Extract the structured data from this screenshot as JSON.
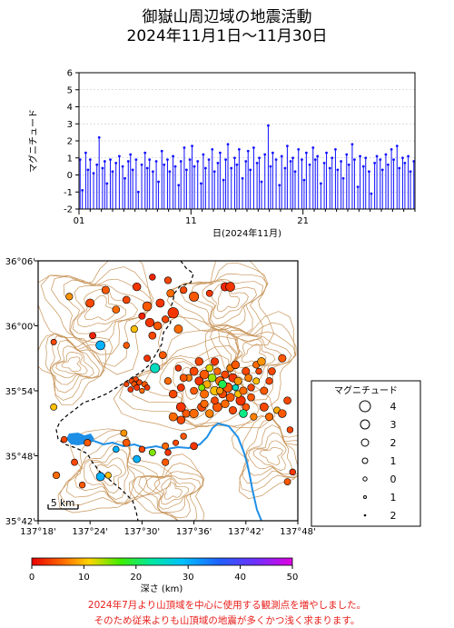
{
  "title": {
    "line1": "御嶽山周辺域の地震活動",
    "line2": "2024年11月1日〜11月30日"
  },
  "colors": {
    "stem": "#1010ff",
    "river": "#1e8fe6",
    "contour": "#c8955a",
    "note": "#e8201c"
  },
  "chart_data": [
    {
      "type": "stem",
      "ylabel": "マグニチュード",
      "xlabel": "日(2024年11月)",
      "xlim": [
        1,
        31
      ],
      "ylim": [
        -2,
        6
      ],
      "xticks": [
        "01",
        "11",
        "21"
      ],
      "xtick_values": [
        1,
        11,
        21
      ],
      "yticks": [
        "6",
        "5",
        "4",
        "3",
        "2",
        "1",
        "0",
        "-1",
        "-2"
      ],
      "events": [
        [
          1.1,
          0.9
        ],
        [
          1.3,
          -0.9
        ],
        [
          1.6,
          1.3
        ],
        [
          1.8,
          0.3
        ],
        [
          2.0,
          0.9
        ],
        [
          2.3,
          0.1
        ],
        [
          2.6,
          0.6
        ],
        [
          2.8,
          2.2
        ],
        [
          3.1,
          0.4
        ],
        [
          3.3,
          0.8
        ],
        [
          3.5,
          -0.5
        ],
        [
          3.8,
          0.9
        ],
        [
          4.0,
          0.2
        ],
        [
          4.3,
          0.7
        ],
        [
          4.6,
          1.1
        ],
        [
          4.9,
          0.5
        ],
        [
          5.1,
          -0.2
        ],
        [
          5.4,
          0.8
        ],
        [
          5.6,
          1.2
        ],
        [
          5.8,
          0.3
        ],
        [
          6.1,
          0.9
        ],
        [
          6.3,
          -1.0
        ],
        [
          6.6,
          0.6
        ],
        [
          6.9,
          1.3
        ],
        [
          7.1,
          0.4
        ],
        [
          7.3,
          0.9
        ],
        [
          7.6,
          0.2
        ],
        [
          7.9,
          0.8
        ],
        [
          8.1,
          -0.4
        ],
        [
          8.4,
          1.4
        ],
        [
          8.6,
          0.6
        ],
        [
          8.9,
          0.9
        ],
        [
          9.1,
          0.2
        ],
        [
          9.4,
          1.1
        ],
        [
          9.6,
          0.5
        ],
        [
          9.9,
          -0.6
        ],
        [
          10.1,
          0.8
        ],
        [
          10.4,
          1.6
        ],
        [
          10.6,
          0.3
        ],
        [
          10.9,
          0.9
        ],
        [
          11.1,
          1.7
        ],
        [
          11.3,
          0.5
        ],
        [
          11.6,
          0.8
        ],
        [
          11.9,
          -0.5
        ],
        [
          12.1,
          1.2
        ],
        [
          12.3,
          0.4
        ],
        [
          12.6,
          0.9
        ],
        [
          12.9,
          1.5
        ],
        [
          13.1,
          0.2
        ],
        [
          13.4,
          0.7
        ],
        [
          13.6,
          1.3
        ],
        [
          13.9,
          -0.3
        ],
        [
          14.1,
          0.9
        ],
        [
          14.3,
          1.8
        ],
        [
          14.6,
          0.4
        ],
        [
          14.9,
          1.0
        ],
        [
          15.1,
          0.6
        ],
        [
          15.3,
          1.5
        ],
        [
          15.6,
          -0.2
        ],
        [
          15.9,
          0.8
        ],
        [
          16.1,
          1.4
        ],
        [
          16.3,
          0.3
        ],
        [
          16.6,
          1.6
        ],
        [
          16.9,
          0.7
        ],
        [
          17.1,
          1.0
        ],
        [
          17.3,
          -0.4
        ],
        [
          17.6,
          1.2
        ],
        [
          17.9,
          2.9
        ],
        [
          18.1,
          0.5
        ],
        [
          18.3,
          1.3
        ],
        [
          18.6,
          0.9
        ],
        [
          18.9,
          -0.6
        ],
        [
          19.1,
          1.1
        ],
        [
          19.4,
          0.4
        ],
        [
          19.6,
          1.7
        ],
        [
          19.9,
          0.8
        ],
        [
          20.1,
          1.0
        ],
        [
          20.3,
          0.2
        ],
        [
          20.6,
          1.5
        ],
        [
          20.9,
          0.9
        ],
        [
          21.1,
          -0.3
        ],
        [
          21.3,
          1.3
        ],
        [
          21.6,
          0.6
        ],
        [
          21.9,
          1.6
        ],
        [
          22.1,
          0.9
        ],
        [
          22.3,
          1.1
        ],
        [
          22.6,
          -0.5
        ],
        [
          22.9,
          0.7
        ],
        [
          23.1,
          1.3
        ],
        [
          23.4,
          0.4
        ],
        [
          23.6,
          1.0
        ],
        [
          23.9,
          1.5
        ],
        [
          24.1,
          0.3
        ],
        [
          24.4,
          0.8
        ],
        [
          24.6,
          -0.2
        ],
        [
          24.9,
          1.2
        ],
        [
          25.1,
          0.6
        ],
        [
          25.4,
          1.8
        ],
        [
          25.6,
          0.9
        ],
        [
          25.9,
          -0.7
        ],
        [
          26.1,
          1.1
        ],
        [
          26.4,
          0.5
        ],
        [
          26.6,
          1.0
        ],
        [
          26.9,
          0.2
        ],
        [
          27.1,
          -1.1
        ],
        [
          27.4,
          0.7
        ],
        [
          27.6,
          1.1
        ],
        [
          27.9,
          0.9
        ],
        [
          28.1,
          0.3
        ],
        [
          28.4,
          1.2
        ],
        [
          28.6,
          0.6
        ],
        [
          28.9,
          1.5
        ],
        [
          29.1,
          0.9
        ],
        [
          29.4,
          1.7
        ],
        [
          29.6,
          0.4
        ],
        [
          29.9,
          1.0
        ],
        [
          30.1,
          0.7
        ],
        [
          30.4,
          1.1
        ],
        [
          30.6,
          0.2
        ],
        [
          30.9,
          0.8
        ]
      ]
    },
    {
      "type": "scatter",
      "xlabels": [
        "137°18'",
        "137°24'",
        "137°30'",
        "137°36'",
        "137°42'",
        "137°48'"
      ],
      "ylabels": [
        "36°06'",
        "36°00'",
        "35°54'",
        "35°48'",
        "35°42'"
      ],
      "xlim_deg": [
        137.3,
        137.8
      ],
      "ylim_deg": [
        35.7,
        36.1
      ],
      "scale_label": "5 km",
      "points": [
        [
          137.52,
          36.075,
          1,
          2
        ],
        [
          137.55,
          36.07,
          1.2,
          4
        ],
        [
          137.49,
          36.06,
          1.5,
          3
        ],
        [
          137.47,
          36.04,
          1.3,
          4
        ],
        [
          137.51,
          36.03,
          1.8,
          5
        ],
        [
          137.535,
          36.035,
          1.6,
          3
        ],
        [
          137.555,
          36.05,
          1.4,
          6
        ],
        [
          137.58,
          36.055,
          1.2,
          4
        ],
        [
          137.6,
          36.045,
          1.9,
          5
        ],
        [
          137.63,
          36.05,
          1.1,
          3
        ],
        [
          137.66,
          36.06,
          1.6,
          2
        ],
        [
          137.67,
          36.06,
          1.8,
          3
        ],
        [
          137.36,
          36.045,
          1.2,
          8
        ],
        [
          137.43,
          36.055,
          1.4,
          5
        ],
        [
          137.4,
          36.035,
          1.6,
          4
        ],
        [
          137.45,
          36.025,
          1.3,
          6
        ],
        [
          137.5,
          36.015,
          1.1,
          2
        ],
        [
          137.515,
          36.005,
          1.7,
          3
        ],
        [
          137.53,
          36.0,
          1.5,
          5
        ],
        [
          137.545,
          36.01,
          1.2,
          4
        ],
        [
          137.56,
          36.02,
          2.2,
          3
        ],
        [
          137.57,
          35.995,
          1.6,
          6
        ],
        [
          137.52,
          35.985,
          1.3,
          4
        ],
        [
          137.485,
          35.995,
          1.2,
          10
        ],
        [
          137.47,
          35.97,
          1.0,
          5
        ],
        [
          137.405,
          35.985,
          1.1,
          2
        ],
        [
          137.33,
          35.975,
          0.9,
          4
        ],
        [
          137.42,
          35.97,
          1.8,
          30
        ],
        [
          137.51,
          35.95,
          1.1,
          3
        ],
        [
          137.525,
          35.935,
          1.9,
          25
        ],
        [
          137.54,
          35.955,
          1.3,
          5
        ],
        [
          137.48,
          35.915,
          0.8,
          4
        ],
        [
          137.485,
          35.91,
          0.8,
          5
        ],
        [
          137.49,
          35.905,
          0.9,
          3
        ],
        [
          137.495,
          35.913,
          0.8,
          4
        ],
        [
          137.5,
          35.9,
          0.7,
          6
        ],
        [
          137.478,
          35.902,
          0.8,
          3
        ],
        [
          137.505,
          35.91,
          0.9,
          5
        ],
        [
          137.47,
          35.91,
          0.7,
          4
        ],
        [
          137.51,
          35.905,
          0.8,
          3
        ],
        [
          137.488,
          35.918,
          0.7,
          4
        ],
        [
          137.55,
          35.915,
          1.2,
          6
        ],
        [
          137.56,
          35.895,
          1.5,
          4
        ],
        [
          137.575,
          35.905,
          1.3,
          3
        ],
        [
          137.59,
          35.92,
          1.2,
          7
        ],
        [
          137.6,
          35.93,
          1.6,
          4
        ],
        [
          137.62,
          35.925,
          1.8,
          5
        ],
        [
          137.63,
          35.935,
          1.3,
          12
        ],
        [
          137.61,
          35.945,
          1.5,
          4
        ],
        [
          137.64,
          35.945,
          1.4,
          3
        ],
        [
          137.65,
          35.915,
          1.7,
          6
        ],
        [
          137.66,
          35.925,
          1.4,
          4
        ],
        [
          137.665,
          35.905,
          1.9,
          5
        ],
        [
          137.675,
          35.92,
          1.6,
          3
        ],
        [
          137.685,
          35.915,
          1.4,
          8
        ],
        [
          137.64,
          35.9,
          1.7,
          10
        ],
        [
          137.655,
          35.895,
          1.5,
          4
        ],
        [
          137.62,
          35.895,
          1.6,
          6
        ],
        [
          137.625,
          35.91,
          1.4,
          9
        ],
        [
          137.6,
          35.9,
          1.3,
          5
        ],
        [
          137.61,
          35.915,
          1.6,
          3
        ],
        [
          137.635,
          35.92,
          1.5,
          14
        ],
        [
          137.645,
          35.93,
          1.2,
          6
        ],
        [
          137.67,
          35.935,
          1.3,
          7
        ],
        [
          137.68,
          35.94,
          1.5,
          5
        ],
        [
          137.7,
          35.93,
          1.4,
          4
        ],
        [
          137.72,
          35.94,
          1.2,
          6
        ],
        [
          137.73,
          35.945,
          1.5,
          8
        ],
        [
          137.75,
          35.93,
          1.3,
          4
        ],
        [
          137.77,
          35.95,
          1.4,
          5
        ],
        [
          137.575,
          35.875,
          1.8,
          3
        ],
        [
          137.585,
          35.865,
          1.4,
          5
        ],
        [
          137.56,
          35.86,
          1.6,
          6
        ],
        [
          137.575,
          35.855,
          1.5,
          4
        ],
        [
          137.6,
          35.865,
          1.7,
          6
        ],
        [
          137.615,
          35.875,
          1.6,
          4
        ],
        [
          137.63,
          35.865,
          1.5,
          7
        ],
        [
          137.645,
          35.875,
          1.8,
          5
        ],
        [
          137.66,
          35.88,
          1.5,
          6
        ],
        [
          137.675,
          35.87,
          1.4,
          4
        ],
        [
          137.69,
          35.885,
          1.9,
          3
        ],
        [
          137.7,
          35.875,
          1.3,
          5
        ],
        [
          137.715,
          35.86,
          1.2,
          7
        ],
        [
          137.735,
          35.875,
          1.6,
          4
        ],
        [
          137.745,
          35.86,
          1.4,
          6
        ],
        [
          137.76,
          35.87,
          1.1,
          9
        ],
        [
          137.78,
          35.885,
          1.3,
          4
        ],
        [
          137.695,
          35.865,
          1.5,
          22
        ],
        [
          137.71,
          35.89,
          1.3,
          5
        ],
        [
          137.77,
          35.865,
          1.5,
          5
        ],
        [
          137.785,
          35.84,
          1.0,
          4
        ],
        [
          137.33,
          35.875,
          1.1,
          10
        ],
        [
          137.35,
          35.825,
          1.0,
          4
        ],
        [
          137.395,
          35.82,
          1.2,
          5
        ],
        [
          137.45,
          35.81,
          1.0,
          30
        ],
        [
          137.465,
          35.835,
          1.1,
          8
        ],
        [
          137.47,
          35.82,
          1.3,
          5
        ],
        [
          137.5,
          35.81,
          1.0,
          4
        ],
        [
          137.545,
          35.815,
          1.1,
          6
        ],
        [
          137.55,
          35.805,
          1.0,
          3
        ],
        [
          137.52,
          35.805,
          1.1,
          15
        ],
        [
          137.565,
          35.82,
          0.9,
          4
        ],
        [
          137.58,
          35.83,
          1.0,
          5
        ],
        [
          137.6,
          35.815,
          1.3,
          3
        ],
        [
          137.49,
          35.795,
          1.3,
          30
        ],
        [
          137.545,
          35.79,
          1.2,
          5
        ],
        [
          137.435,
          35.77,
          1.0,
          10
        ],
        [
          137.42,
          35.768,
          1.6,
          30
        ],
        [
          137.335,
          35.77,
          1.2,
          6
        ],
        [
          137.37,
          35.79,
          1.1,
          4
        ],
        [
          137.385,
          35.755,
          1.0,
          5
        ],
        [
          137.78,
          35.76,
          1.1,
          5
        ],
        [
          137.79,
          35.775,
          1.0,
          3
        ],
        [
          137.65,
          35.9,
          1.2,
          8
        ],
        [
          137.62,
          35.88,
          1.4,
          6
        ],
        [
          137.67,
          35.89,
          1.6,
          5
        ],
        [
          137.64,
          35.885,
          1.3,
          4
        ],
        [
          137.615,
          35.905,
          1.1,
          15
        ],
        [
          137.58,
          35.92,
          1.3,
          5
        ],
        [
          137.57,
          35.935,
          1.0,
          3
        ],
        [
          137.685,
          35.895,
          1.2,
          10
        ],
        [
          137.655,
          35.91,
          1.5,
          20
        ],
        [
          137.68,
          35.905,
          1.0,
          25
        ],
        [
          137.695,
          35.9,
          1.4,
          6
        ],
        [
          137.71,
          35.905,
          1.2,
          4
        ],
        [
          137.72,
          35.915,
          1.1,
          10
        ],
        [
          137.705,
          35.92,
          1.3,
          7
        ],
        [
          137.725,
          35.93,
          1.0,
          4
        ],
        [
          137.735,
          35.9,
          1.4,
          5
        ],
        [
          137.745,
          35.915,
          1.2,
          4
        ]
      ]
    }
  ],
  "legend": {
    "title": "マグニチュード",
    "entries": [
      {
        "label": "4",
        "r": 6
      },
      {
        "label": "3",
        "r": 5
      },
      {
        "label": "2",
        "r": 4
      },
      {
        "label": "1",
        "r": 3
      },
      {
        "label": "0",
        "r": 2.2
      },
      {
        "label": "1",
        "r": 1.5
      },
      {
        "label": "2",
        "r": 0.8
      }
    ]
  },
  "colorbar": {
    "label": "深さ (km)",
    "ticks": [
      "0",
      "10",
      "20",
      "30",
      "40",
      "50"
    ],
    "range": [
      0,
      50
    ]
  },
  "notes": {
    "line1": "2024年7月より山頂域を中心に使用する観測点を増やしました。",
    "line2": "そのため従来よりも山頂域の地震が多くかつ浅く求まります。"
  }
}
